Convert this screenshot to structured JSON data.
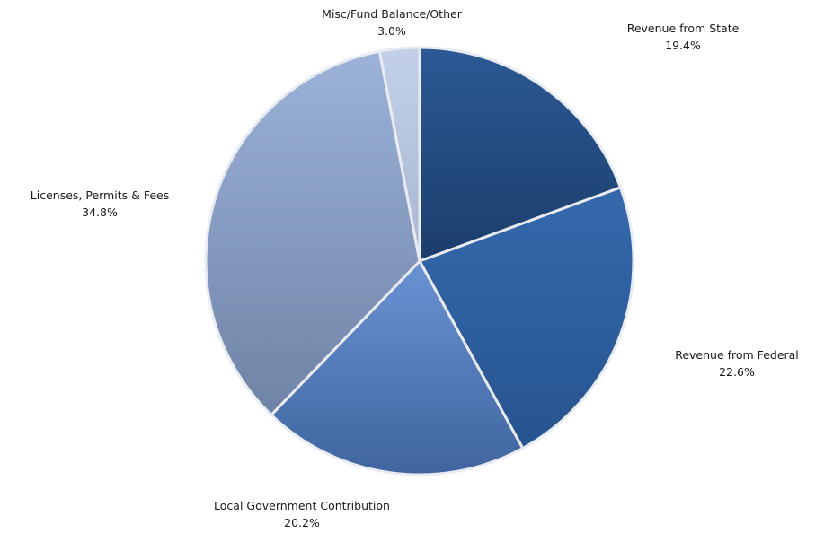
{
  "chart_data": {
    "type": "pie",
    "title": "",
    "start_angle_deg": 0,
    "direction": "clockwise",
    "slices": [
      {
        "label": "Revenue from State",
        "value": 19.4,
        "display": "19.4%",
        "color_from": "#2c5a95",
        "color_to": "#1b3d6b"
      },
      {
        "label": "Revenue from Federal",
        "value": 22.6,
        "display": "22.6%",
        "color_from": "#3569ad",
        "color_to": "#26548f"
      },
      {
        "label": "Local Government Contribution",
        "value": 20.2,
        "display": "20.2%",
        "color_from": "#6a93d4",
        "color_to": "#3f649e"
      },
      {
        "label": "Licenses, Permits & Fees",
        "value": 34.8,
        "display": "34.8%",
        "color_from": "#9db2d9",
        "color_to": "#6f83a6"
      },
      {
        "label": "Misc/Fund Balance/Other",
        "value": 3.0,
        "display": "3.0%",
        "color_from": "#c3d0e8",
        "color_to": "#a8b6d2"
      }
    ],
    "legend": "none"
  }
}
